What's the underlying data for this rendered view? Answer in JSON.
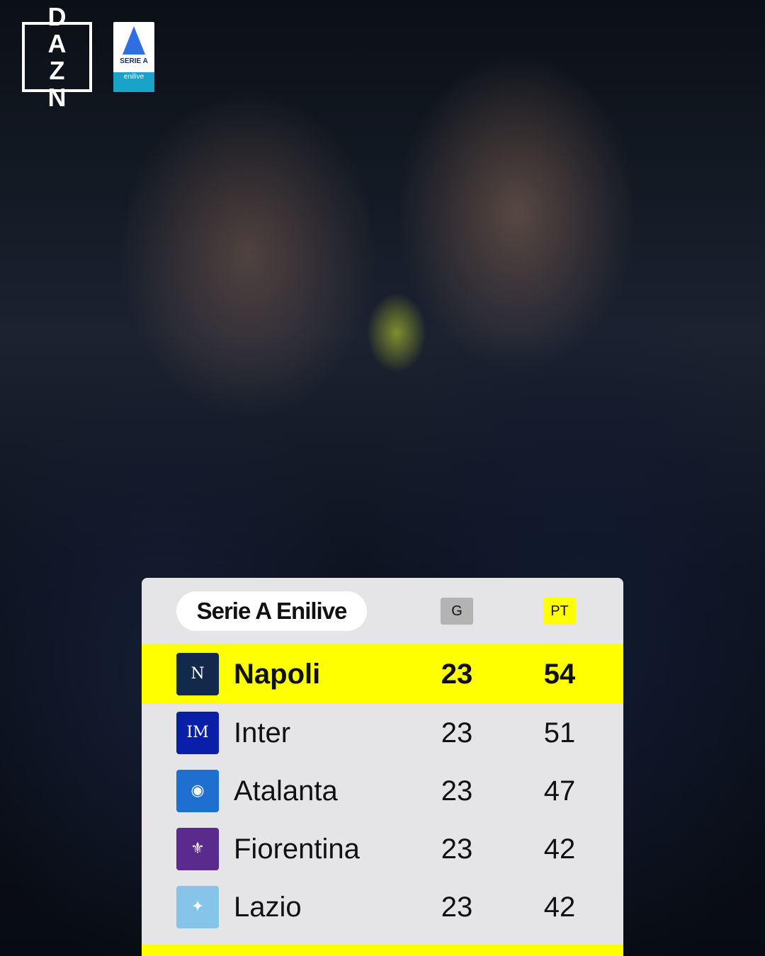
{
  "branding": {
    "broadcaster": "DAZN",
    "league_logo": "SERIE A enilive"
  },
  "table": {
    "title": "Serie A Enilive",
    "col_games": "G",
    "col_points": "PT",
    "highlight_color": "#ffff00",
    "rows": [
      {
        "team": "Napoli",
        "games": "23",
        "points": "54",
        "crest_color": "#13294b",
        "crest_icon": "napoli-crest-icon",
        "leader": true
      },
      {
        "team": "Inter",
        "games": "23",
        "points": "51",
        "crest_color": "#0a1fa8",
        "crest_icon": "inter-crest-icon"
      },
      {
        "team": "Atalanta",
        "games": "23",
        "points": "47",
        "crest_color": "#1e6fd0",
        "crest_icon": "atalanta-crest-icon"
      },
      {
        "team": "Fiorentina",
        "games": "23",
        "points": "42",
        "crest_color": "#5a2a8c",
        "crest_icon": "fiorentina-crest-icon"
      },
      {
        "team": "Lazio",
        "games": "23",
        "points": "42",
        "crest_color": "#86c4ea",
        "crest_icon": "lazio-crest-icon"
      }
    ]
  }
}
